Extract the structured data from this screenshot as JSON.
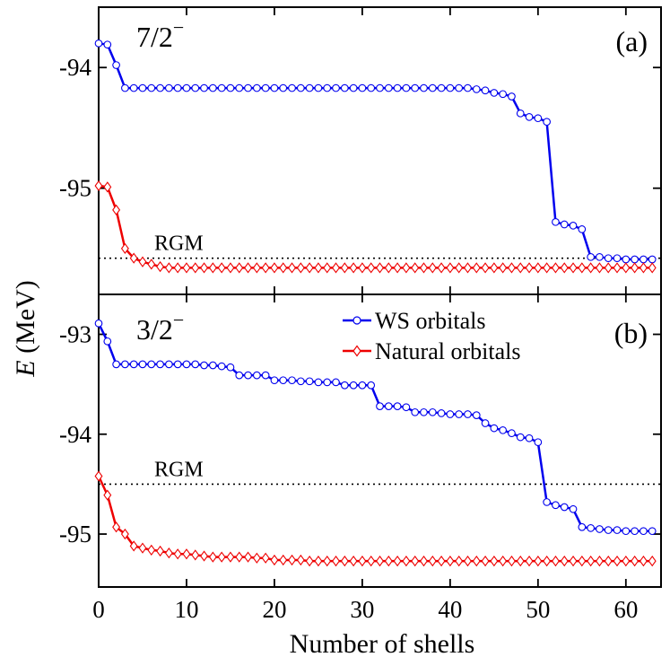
{
  "chart_data": {
    "type": "line",
    "xlabel": "Number of shells",
    "ylabel_italic": "E",
    "ylabel_rest": " (MeV)",
    "xlim": [
      0,
      64
    ],
    "xticks": [
      0,
      10,
      20,
      30,
      40,
      50,
      60
    ],
    "legend": {
      "location": "top-center of panel (b)",
      "entries": [
        "WS orbitals",
        "Natural orbitals"
      ]
    },
    "colors": {
      "ws": "#0000ee",
      "natural": "#ee0000",
      "axis": "#000000",
      "rgm": "#000000"
    },
    "panels": [
      {
        "id": "a",
        "label": "(a)",
        "state_num": "7/2",
        "state_sup": "−",
        "ylim": [
          -95.88,
          -93.5
        ],
        "yticks": [
          -94,
          -95
        ],
        "ytick_labels": [
          "-94",
          "-95"
        ],
        "rgm": {
          "label": "RGM",
          "value": -95.58
        },
        "series": [
          {
            "name": "WS orbitals",
            "x": [
              0,
              1,
              2,
              3,
              4,
              5,
              6,
              7,
              8,
              9,
              10,
              11,
              12,
              13,
              14,
              15,
              16,
              17,
              18,
              19,
              20,
              21,
              22,
              23,
              24,
              25,
              26,
              27,
              28,
              29,
              30,
              31,
              32,
              33,
              34,
              35,
              36,
              37,
              38,
              39,
              40,
              41,
              42,
              43,
              44,
              45,
              46,
              47,
              48,
              49,
              50,
              51,
              52,
              53,
              54,
              55,
              56,
              57,
              58,
              59,
              60,
              61,
              62,
              63
            ],
            "values": [
              -93.8,
              -93.81,
              -93.98,
              -94.17,
              -94.17,
              -94.17,
              -94.17,
              -94.17,
              -94.17,
              -94.17,
              -94.17,
              -94.17,
              -94.17,
              -94.17,
              -94.17,
              -94.17,
              -94.17,
              -94.17,
              -94.17,
              -94.17,
              -94.17,
              -94.17,
              -94.17,
              -94.17,
              -94.17,
              -94.17,
              -94.17,
              -94.17,
              -94.17,
              -94.17,
              -94.17,
              -94.17,
              -94.17,
              -94.17,
              -94.17,
              -94.17,
              -94.17,
              -94.17,
              -94.17,
              -94.17,
              -94.17,
              -94.17,
              -94.17,
              -94.18,
              -94.19,
              -94.21,
              -94.22,
              -94.24,
              -94.38,
              -94.41,
              -94.42,
              -94.45,
              -95.28,
              -95.3,
              -95.31,
              -95.34,
              -95.57,
              -95.57,
              -95.58,
              -95.58,
              -95.59,
              -95.59,
              -95.59,
              -95.59
            ]
          },
          {
            "name": "Natural orbitals",
            "x": [
              0,
              1,
              2,
              3,
              4,
              5,
              6,
              7,
              8,
              9,
              10,
              11,
              12,
              13,
              14,
              15,
              16,
              17,
              18,
              19,
              20,
              21,
              22,
              23,
              24,
              25,
              26,
              27,
              28,
              29,
              30,
              31,
              32,
              33,
              34,
              35,
              36,
              37,
              38,
              39,
              40,
              41,
              42,
              43,
              44,
              45,
              46,
              47,
              48,
              49,
              50,
              51,
              52,
              53,
              54,
              55,
              56,
              57,
              58,
              59,
              60,
              61,
              62,
              63
            ],
            "values": [
              -94.98,
              -94.99,
              -95.18,
              -95.5,
              -95.58,
              -95.61,
              -95.63,
              -95.65,
              -95.66,
              -95.66,
              -95.66,
              -95.66,
              -95.66,
              -95.66,
              -95.66,
              -95.66,
              -95.66,
              -95.66,
              -95.66,
              -95.66,
              -95.66,
              -95.66,
              -95.66,
              -95.66,
              -95.66,
              -95.66,
              -95.66,
              -95.66,
              -95.66,
              -95.66,
              -95.66,
              -95.66,
              -95.66,
              -95.66,
              -95.66,
              -95.66,
              -95.66,
              -95.66,
              -95.66,
              -95.66,
              -95.66,
              -95.66,
              -95.66,
              -95.66,
              -95.66,
              -95.66,
              -95.66,
              -95.66,
              -95.66,
              -95.66,
              -95.66,
              -95.66,
              -95.66,
              -95.66,
              -95.66,
              -95.66,
              -95.66,
              -95.66,
              -95.66,
              -95.66,
              -95.66,
              -95.66,
              -95.66,
              -95.66
            ]
          }
        ]
      },
      {
        "id": "b",
        "label": "(b)",
        "state_num": "3/2",
        "state_sup": "−",
        "ylim": [
          -95.53,
          -92.6
        ],
        "yticks": [
          -93,
          -94,
          -95
        ],
        "ytick_labels": [
          "-93",
          "-94",
          "-95"
        ],
        "rgm": {
          "label": "RGM",
          "value": -94.5
        },
        "series": [
          {
            "name": "WS orbitals",
            "x": [
              0,
              1,
              2,
              3,
              4,
              5,
              6,
              7,
              8,
              9,
              10,
              11,
              12,
              13,
              14,
              15,
              16,
              17,
              18,
              19,
              20,
              21,
              22,
              23,
              24,
              25,
              26,
              27,
              28,
              29,
              30,
              31,
              32,
              33,
              34,
              35,
              36,
              37,
              38,
              39,
              40,
              41,
              42,
              43,
              44,
              45,
              46,
              47,
              48,
              49,
              50,
              51,
              52,
              53,
              54,
              55,
              56,
              57,
              58,
              59,
              60,
              61,
              62,
              63
            ],
            "values": [
              -92.89,
              -93.07,
              -93.3,
              -93.3,
              -93.3,
              -93.3,
              -93.3,
              -93.3,
              -93.3,
              -93.3,
              -93.3,
              -93.3,
              -93.31,
              -93.31,
              -93.32,
              -93.33,
              -93.41,
              -93.41,
              -93.41,
              -93.41,
              -93.46,
              -93.46,
              -93.46,
              -93.47,
              -93.47,
              -93.48,
              -93.48,
              -93.48,
              -93.51,
              -93.51,
              -93.51,
              -93.51,
              -93.72,
              -93.72,
              -93.72,
              -93.73,
              -93.78,
              -93.78,
              -93.78,
              -93.79,
              -93.8,
              -93.8,
              -93.8,
              -93.81,
              -93.89,
              -93.94,
              -93.96,
              -93.99,
              -94.03,
              -94.04,
              -94.08,
              -94.68,
              -94.71,
              -94.73,
              -94.75,
              -94.93,
              -94.94,
              -94.95,
              -94.96,
              -94.96,
              -94.97,
              -94.97,
              -94.97,
              -94.97
            ]
          },
          {
            "name": "Natural orbitals",
            "x": [
              0,
              1,
              2,
              3,
              4,
              5,
              6,
              7,
              8,
              9,
              10,
              11,
              12,
              13,
              14,
              15,
              16,
              17,
              18,
              19,
              20,
              21,
              22,
              23,
              24,
              25,
              26,
              27,
              28,
              29,
              30,
              31,
              32,
              33,
              34,
              35,
              36,
              37,
              38,
              39,
              40,
              41,
              42,
              43,
              44,
              45,
              46,
              47,
              48,
              49,
              50,
              51,
              52,
              53,
              54,
              55,
              56,
              57,
              58,
              59,
              60,
              61,
              62,
              63
            ],
            "values": [
              -94.42,
              -94.61,
              -94.93,
              -95,
              -95.12,
              -95.14,
              -95.16,
              -95.17,
              -95.19,
              -95.2,
              -95.2,
              -95.21,
              -95.22,
              -95.23,
              -95.23,
              -95.23,
              -95.23,
              -95.23,
              -95.24,
              -95.24,
              -95.26,
              -95.26,
              -95.26,
              -95.26,
              -95.27,
              -95.27,
              -95.27,
              -95.27,
              -95.27,
              -95.27,
              -95.27,
              -95.27,
              -95.27,
              -95.27,
              -95.27,
              -95.27,
              -95.27,
              -95.27,
              -95.27,
              -95.27,
              -95.27,
              -95.27,
              -95.27,
              -95.27,
              -95.27,
              -95.27,
              -95.27,
              -95.27,
              -95.27,
              -95.27,
              -95.27,
              -95.27,
              -95.27,
              -95.27,
              -95.27,
              -95.27,
              -95.27,
              -95.27,
              -95.27,
              -95.27,
              -95.27,
              -95.27,
              -95.27,
              -95.27
            ]
          }
        ]
      }
    ]
  }
}
